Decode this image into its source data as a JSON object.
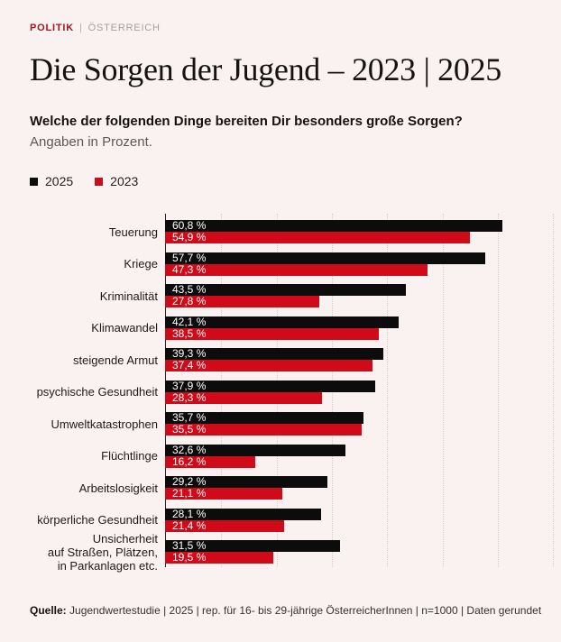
{
  "header": {
    "kicker": {
      "section": "POLITIK",
      "separator": "|",
      "region": "ÖSTERREICH"
    },
    "title": "Die Sorgen der Jugend – 2023 | 2025",
    "question": "Welche der folgenden Dinge bereiten Dir besonders große Sorgen?",
    "note": "Angaben in Prozent."
  },
  "legend": {
    "items": [
      {
        "label": "2025",
        "color": "#0d0c0c"
      },
      {
        "label": "2023",
        "color": "#d10a1a"
      }
    ]
  },
  "chart_data": {
    "type": "bar",
    "orientation": "horizontal",
    "title": "Die Sorgen der Jugend – 2023 | 2025",
    "xlabel": "Angaben in Prozent",
    "ylabel": "",
    "xmax": 71.4,
    "grid_step": 10,
    "grid_max": 70,
    "grid": true,
    "legend_position": "top-left",
    "categories": [
      "Teuerung",
      "Kriege",
      "Kriminalität",
      "Klimawandel",
      "steigende Armut",
      "psychische Gesundheit",
      "Umweltkatastrophen",
      "Flüchtlinge",
      "Arbeitslosigkeit",
      "körperliche Gesundheit",
      "Unsicherheit\nauf Straßen, Plätzen,\nin Parkanlagen etc."
    ],
    "series": [
      {
        "name": "2025",
        "color": "#0d0c0c",
        "values": [
          60.8,
          57.7,
          43.5,
          42.1,
          39.3,
          37.9,
          35.7,
          32.6,
          29.2,
          28.1,
          31.5
        ],
        "labels": [
          "60,8 %",
          "57,7 %",
          "43,5 %",
          "42,1 %",
          "39,3 %",
          "37,9 %",
          "35,7 %",
          "32,6 %",
          "29,2 %",
          "28,1 %",
          "31,5 %"
        ]
      },
      {
        "name": "2023",
        "color": "#d10a1a",
        "values": [
          54.9,
          47.3,
          27.8,
          38.5,
          37.4,
          28.3,
          35.5,
          16.2,
          21.1,
          21.4,
          19.5
        ],
        "labels": [
          "54,9 %",
          "47,3 %",
          "27,8 %",
          "38,5 %",
          "37,4 %",
          "28,3 %",
          "35,5 %",
          "16,2 %",
          "21,1 %",
          "21,4 %",
          "19,5 %"
        ]
      }
    ]
  },
  "footer": {
    "source_label": "Quelle:",
    "source_text": " Jugendwertestudie | 2025 | rep. für 16- bis 29-jährige ÖsterreicherInnen | n=1000 | Daten gerundet"
  },
  "colors": {
    "background": "#faf2f0",
    "kicker_red": "#a6171c",
    "bar_black": "#0d0c0c",
    "bar_red": "#d10a1a",
    "gridline": "#d9cbc7"
  }
}
